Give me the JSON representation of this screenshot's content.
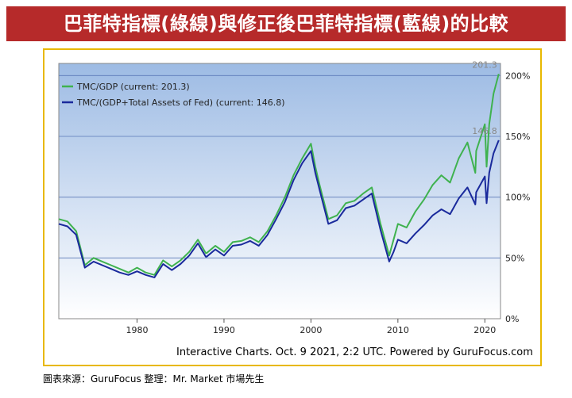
{
  "banner": {
    "title": "巴菲特指標(綠線)與修正後巴菲特指標(藍線)的比較"
  },
  "footer": {
    "credit": "Interactive Charts. Oct. 9 2021, 2:2 UTC. Powered by GuruFocus.com",
    "source": "圖表來源：GuruFocus    整理：Mr. Market 市場先生"
  },
  "colors": {
    "banner_bg": "#b62a2a",
    "frame_border": "#e8b800",
    "green": "#3fb24f",
    "blue": "#1a2a9c"
  },
  "chart_data": {
    "type": "line",
    "xlim": [
      1971,
      2021.8
    ],
    "ylim": [
      0,
      210
    ],
    "x_ticks": [
      1980,
      1990,
      2000,
      2010,
      2020
    ],
    "y_ticks": [
      {
        "value": 0,
        "label": "0%"
      },
      {
        "value": 50,
        "label": "50%"
      },
      {
        "value": 100,
        "label": "100%"
      },
      {
        "value": 150,
        "label": "150%"
      },
      {
        "value": 200,
        "label": "200%"
      }
    ],
    "grid": true,
    "legend_position": "top-left",
    "series": [
      {
        "name": "TMC/GDP (current: 201.3)",
        "color": "#3fb24f",
        "end_label": "201.3",
        "points": [
          [
            1971,
            82
          ],
          [
            1972,
            80
          ],
          [
            1973,
            72
          ],
          [
            1974,
            44
          ],
          [
            1975,
            50
          ],
          [
            1976,
            47
          ],
          [
            1977,
            44
          ],
          [
            1978,
            41
          ],
          [
            1979,
            38
          ],
          [
            1980,
            42
          ],
          [
            1981,
            38
          ],
          [
            1982,
            36
          ],
          [
            1983,
            48
          ],
          [
            1984,
            43
          ],
          [
            1985,
            48
          ],
          [
            1986,
            55
          ],
          [
            1987,
            65
          ],
          [
            1987.9,
            54
          ],
          [
            1988,
            54
          ],
          [
            1989,
            60
          ],
          [
            1990,
            55
          ],
          [
            1991,
            63
          ],
          [
            1992,
            64
          ],
          [
            1993,
            67
          ],
          [
            1994,
            63
          ],
          [
            1995,
            72
          ],
          [
            1996,
            85
          ],
          [
            1997,
            100
          ],
          [
            1998,
            118
          ],
          [
            1999,
            132
          ],
          [
            2000,
            144
          ],
          [
            2000.5,
            125
          ],
          [
            2001,
            110
          ],
          [
            2002,
            82
          ],
          [
            2003,
            85
          ],
          [
            2004,
            95
          ],
          [
            2005,
            97
          ],
          [
            2006,
            103
          ],
          [
            2007,
            108
          ],
          [
            2008,
            78
          ],
          [
            2009,
            52
          ],
          [
            2009.5,
            65
          ],
          [
            2010,
            78
          ],
          [
            2011,
            75
          ],
          [
            2012,
            88
          ],
          [
            2013,
            98
          ],
          [
            2014,
            110
          ],
          [
            2015,
            118
          ],
          [
            2016,
            112
          ],
          [
            2017,
            132
          ],
          [
            2018,
            145
          ],
          [
            2018.9,
            120
          ],
          [
            2019,
            138
          ],
          [
            2020,
            160
          ],
          [
            2020.2,
            125
          ],
          [
            2020.5,
            160
          ],
          [
            2021,
            185
          ],
          [
            2021.6,
            201.3
          ]
        ]
      },
      {
        "name": "TMC/(GDP+Total Assets of Fed) (current: 146.8)",
        "color": "#1a2a9c",
        "end_label": "146.8",
        "points": [
          [
            1971,
            78
          ],
          [
            1972,
            76
          ],
          [
            1973,
            69
          ],
          [
            1974,
            42
          ],
          [
            1975,
            47
          ],
          [
            1976,
            44
          ],
          [
            1977,
            41
          ],
          [
            1978,
            38
          ],
          [
            1979,
            36
          ],
          [
            1980,
            39
          ],
          [
            1981,
            36
          ],
          [
            1982,
            34
          ],
          [
            1983,
            45
          ],
          [
            1984,
            40
          ],
          [
            1985,
            45
          ],
          [
            1986,
            52
          ],
          [
            1987,
            62
          ],
          [
            1987.9,
            51
          ],
          [
            1988,
            51
          ],
          [
            1989,
            57
          ],
          [
            1990,
            52
          ],
          [
            1991,
            60
          ],
          [
            1992,
            61
          ],
          [
            1993,
            64
          ],
          [
            1994,
            60
          ],
          [
            1995,
            69
          ],
          [
            1996,
            82
          ],
          [
            1997,
            96
          ],
          [
            1998,
            114
          ],
          [
            1999,
            128
          ],
          [
            2000,
            138
          ],
          [
            2000.5,
            120
          ],
          [
            2001,
            106
          ],
          [
            2002,
            78
          ],
          [
            2003,
            81
          ],
          [
            2004,
            91
          ],
          [
            2005,
            93
          ],
          [
            2006,
            98
          ],
          [
            2007,
            103
          ],
          [
            2008,
            73
          ],
          [
            2009,
            47
          ],
          [
            2009.5,
            55
          ],
          [
            2010,
            65
          ],
          [
            2011,
            62
          ],
          [
            2012,
            70
          ],
          [
            2013,
            77
          ],
          [
            2014,
            85
          ],
          [
            2015,
            90
          ],
          [
            2016,
            86
          ],
          [
            2017,
            99
          ],
          [
            2018,
            108
          ],
          [
            2018.9,
            94
          ],
          [
            2019,
            104
          ],
          [
            2020,
            117
          ],
          [
            2020.2,
            95
          ],
          [
            2020.5,
            120
          ],
          [
            2021,
            136
          ],
          [
            2021.6,
            146.8
          ]
        ]
      }
    ]
  }
}
